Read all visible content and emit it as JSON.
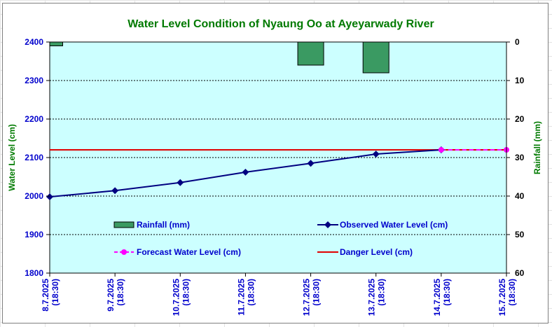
{
  "chart_data": {
    "type": "line",
    "title": "Water Level Condition of Nyaung Oo at Ayeyarwady River",
    "ylabel": "Water Level (cm)",
    "y2label": "Rainfall (mm)",
    "ylim": [
      1800,
      2400
    ],
    "y_ticks": [
      "1800",
      "1900",
      "2000",
      "2100",
      "2200",
      "2300",
      "2400"
    ],
    "y2lim": [
      0,
      60
    ],
    "y2_inverted": true,
    "y2_ticks": [
      "0",
      "10",
      "20",
      "30",
      "40",
      "50",
      "60"
    ],
    "grid": "horizontal dashed",
    "categories": [
      {
        "date": "8.7.2025",
        "time": "(18:30)"
      },
      {
        "date": "9.7.2025",
        "time": "(18:30)"
      },
      {
        "date": "10.7.2025",
        "time": "(18:30)"
      },
      {
        "date": "11.7.2025",
        "time": "(18:30)"
      },
      {
        "date": "12.7.2025",
        "time": "(18:30)"
      },
      {
        "date": "13.7.2025",
        "time": "(18:30)"
      },
      {
        "date": "14.7.2025",
        "time": "(18:30)"
      },
      {
        "date": "15.7.2025",
        "time": "(18:30)"
      }
    ],
    "series": [
      {
        "name": "Rainfall (mm)",
        "kind": "bar",
        "axis": "right",
        "color": "#3a9a62",
        "values": [
          1,
          null,
          null,
          null,
          6,
          8,
          null,
          null
        ]
      },
      {
        "name": "Observed Water Level (cm)",
        "kind": "line",
        "axis": "left",
        "color": "#000080",
        "values": [
          1998,
          2014,
          2035,
          2062,
          2085,
          2109,
          2120,
          null
        ]
      },
      {
        "name": "Forecast Water Level (cm)",
        "kind": "line-dashed",
        "axis": "left",
        "color": "#ff00ff",
        "values": [
          null,
          null,
          null,
          null,
          null,
          null,
          2120,
          2120
        ]
      },
      {
        "name": "Danger Level (cm)",
        "kind": "hline",
        "axis": "left",
        "color": "#e00000",
        "value": 2120
      }
    ],
    "legend": "inside-bottom, two columns"
  }
}
